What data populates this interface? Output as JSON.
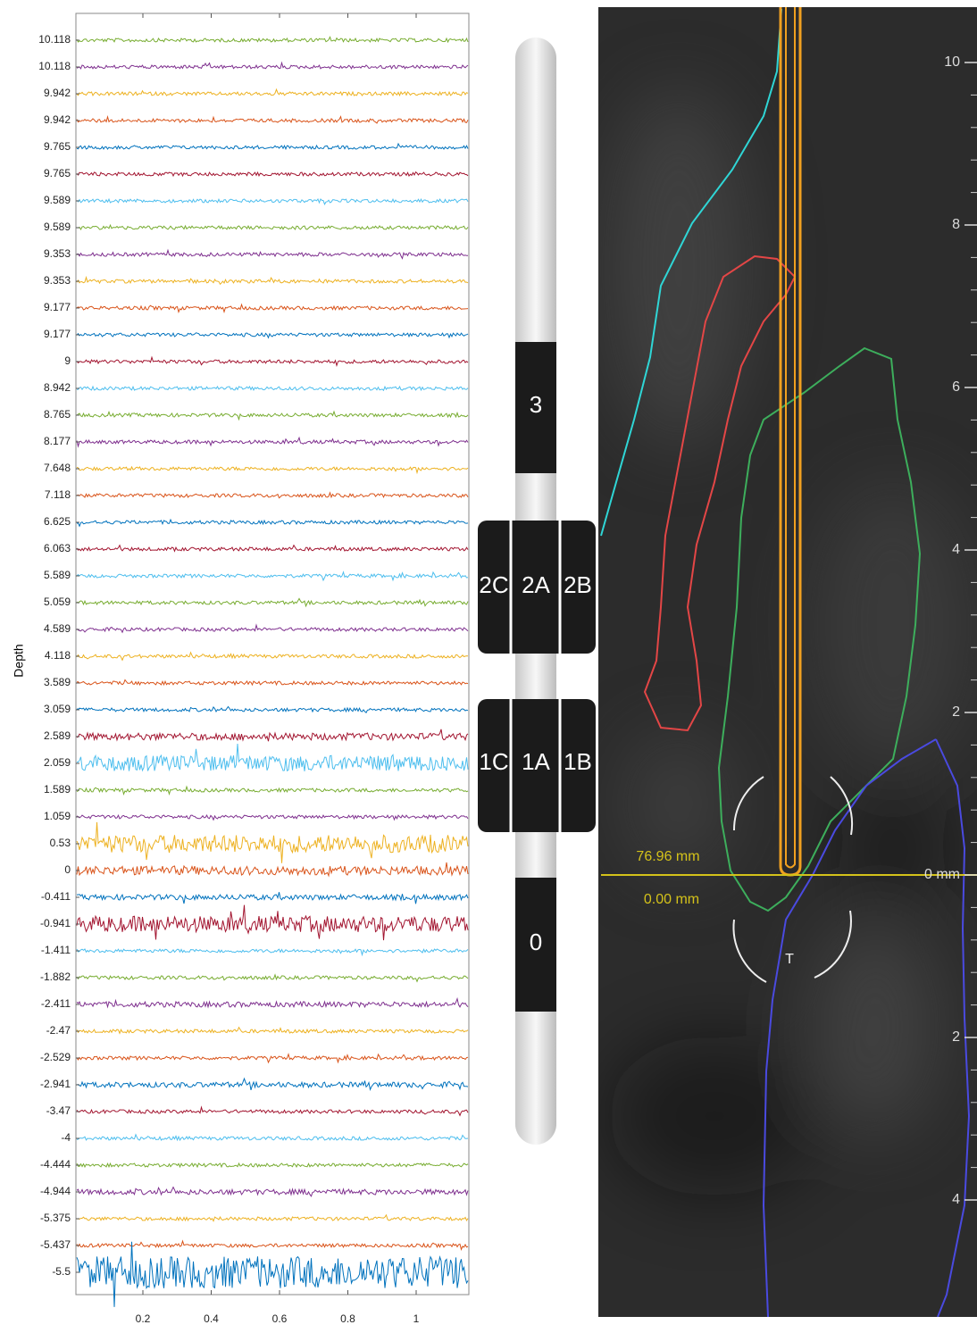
{
  "traces_panel": {
    "y_label": "Depth",
    "depth_labels": [
      "10.118",
      "10.118",
      "9.942",
      "9.942",
      "9.765",
      "9.765",
      "9.589",
      "9.589",
      "9.353",
      "9.353",
      "9.177",
      "9.177",
      "9",
      "8.942",
      "8.765",
      "8.177",
      "7.648",
      "7.118",
      "6.625",
      "6.063",
      "5.589",
      "5.059",
      "4.589",
      "4.118",
      "3.589",
      "3.059",
      "2.589",
      "2.059",
      "1.589",
      "1.059",
      "0.53",
      "0",
      "-0.411",
      "-0.941",
      "-1.411",
      "-1.882",
      "-2.411",
      "-2.47",
      "-2.529",
      "-2.941",
      "-3.47",
      "-4",
      "-4.444",
      "-4.944",
      "-5.375",
      "-5.437",
      "-5.5"
    ],
    "x_tick_labels": [
      "0.2",
      "0.4",
      "0.6",
      "0.8",
      "1"
    ]
  },
  "lead": {
    "contacts": [
      "3",
      "2C",
      "2A",
      "2B",
      "1C",
      "1A",
      "1B",
      "0"
    ]
  },
  "image_panel": {
    "upper_measure": "76.96 mm",
    "lower_measure": "0.00 mm",
    "target_label": "T",
    "scale_labels": [
      "10",
      "8",
      "6",
      "4",
      "2",
      "0 mm",
      "2",
      "4"
    ]
  }
}
